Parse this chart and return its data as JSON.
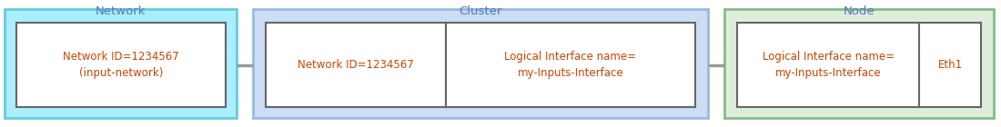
{
  "title_network": "Network",
  "title_cluster": "Cluster",
  "title_node": "Node",
  "title_color": "#5577bb",
  "title_fontsize": 9.5,
  "network_bg": "#aaeeff",
  "network_border": "#66ccdd",
  "cluster_bg": "#ccddf5",
  "cluster_border": "#99bbdd",
  "node_bg": "#ddeedd",
  "node_border": "#88bb88",
  "inner_box_bg": "#ffffff",
  "inner_box_border": "#666666",
  "text_color": "#cc4400",
  "text_fontsize": 8.5,
  "net_box_text1": "Network ID=1234567",
  "net_box_text2": "(input-network)",
  "cluster_box1_text": "Network ID=1234567",
  "cluster_box2_text1": "Logical Interface name=",
  "cluster_box2_text2": "my-Inputs-Interface",
  "node_box1_text1": "Logical Interface name=",
  "node_box1_text2": "my-Inputs-Interface",
  "node_box2_text": "Eth1",
  "connector_color": "#999999",
  "connector_lw": 2.5,
  "fig_w": 11.0,
  "fig_h": 1.4,
  "dpi": 100
}
